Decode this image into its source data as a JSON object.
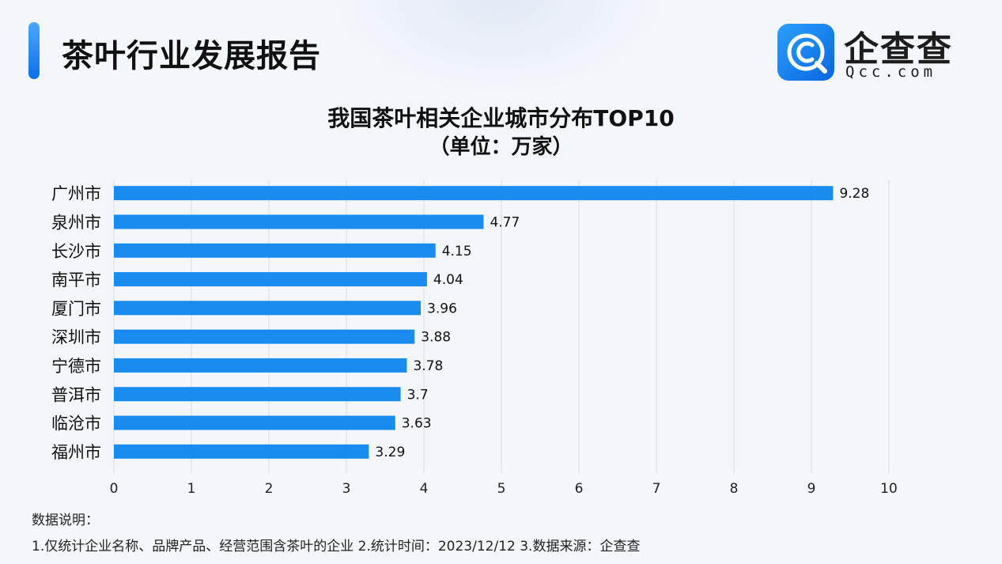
{
  "header": {
    "title": "茶叶行业发展报告"
  },
  "logo": {
    "icon": "qcc-logo-icon",
    "name": "企查查",
    "domain": "Qcc.com"
  },
  "colors": {
    "bar": "#1a8cf0",
    "grid": "#d9dde3",
    "accent": "#1677f2"
  },
  "chart_data": {
    "type": "bar",
    "orientation": "horizontal",
    "title": "我国茶叶相关企业城市分布TOP10",
    "subtitle": "（单位：万家）",
    "categories": [
      "广州市",
      "泉州市",
      "长沙市",
      "南平市",
      "厦门市",
      "深圳市",
      "宁德市",
      "普洱市",
      "临沧市",
      "福州市"
    ],
    "values": [
      9.28,
      4.77,
      4.15,
      4.04,
      3.96,
      3.88,
      3.78,
      3.7,
      3.63,
      3.29
    ],
    "value_labels": [
      "9.28",
      "4.77",
      "4.15",
      "4.04",
      "3.96",
      "3.88",
      "3.78",
      "3.7",
      "3.63",
      "3.29"
    ],
    "xlim": [
      0,
      10
    ],
    "xticks": [
      "0",
      "1",
      "2",
      "3",
      "4",
      "5",
      "6",
      "7",
      "8",
      "9",
      "10"
    ],
    "grid": "vertical",
    "legend": "none"
  },
  "footnote": {
    "heading": "数据说明：",
    "text": "1.仅统计企业名称、品牌产品、经营范围含茶叶的企业   2.统计时间：2023/12/12   3.数据来源：企查查"
  }
}
